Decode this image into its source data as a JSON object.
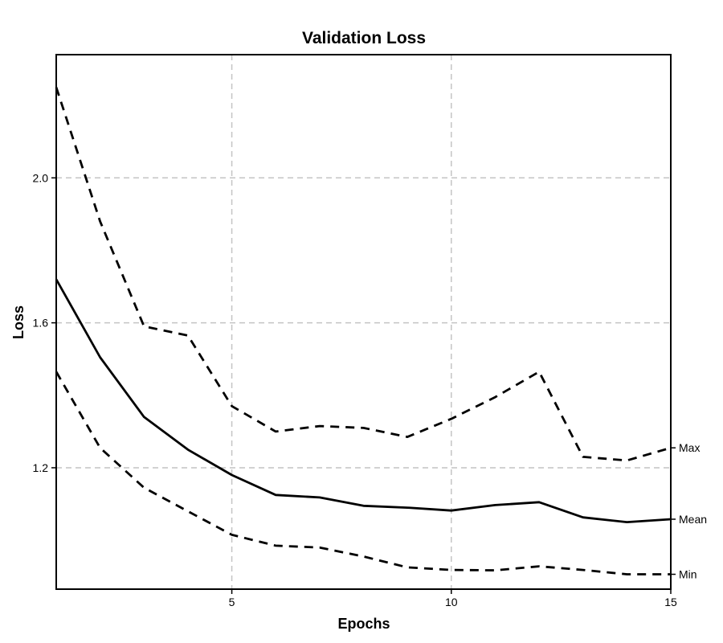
{
  "chart_data": {
    "type": "line",
    "title": "Validation Loss",
    "xlabel": "Epochs",
    "ylabel": "Loss",
    "xlim": [
      1,
      15
    ],
    "ylim": [
      0.865,
      2.34
    ],
    "x_ticks": [
      5,
      10,
      15
    ],
    "y_ticks": [
      1.2,
      1.6,
      2.0
    ],
    "grid": true,
    "legend": "end-of-line labels",
    "x": [
      1,
      2,
      3,
      4,
      5,
      6,
      7,
      8,
      9,
      10,
      11,
      12,
      13,
      14,
      15
    ],
    "series": [
      {
        "name": "Max",
        "style": "dashed",
        "values": [
          2.25,
          1.88,
          1.59,
          1.565,
          1.37,
          1.3,
          1.315,
          1.31,
          1.285,
          1.335,
          1.395,
          1.465,
          1.23,
          1.22,
          1.255
        ]
      },
      {
        "name": "Mean",
        "style": "solid",
        "values": [
          1.72,
          1.505,
          1.34,
          1.25,
          1.18,
          1.125,
          1.118,
          1.095,
          1.09,
          1.082,
          1.097,
          1.105,
          1.063,
          1.05,
          1.058
        ]
      },
      {
        "name": "Min",
        "style": "dashed",
        "values": [
          1.465,
          1.255,
          1.145,
          1.08,
          1.015,
          0.985,
          0.98,
          0.955,
          0.925,
          0.918,
          0.917,
          0.928,
          0.918,
          0.906,
          0.906
        ]
      }
    ]
  }
}
